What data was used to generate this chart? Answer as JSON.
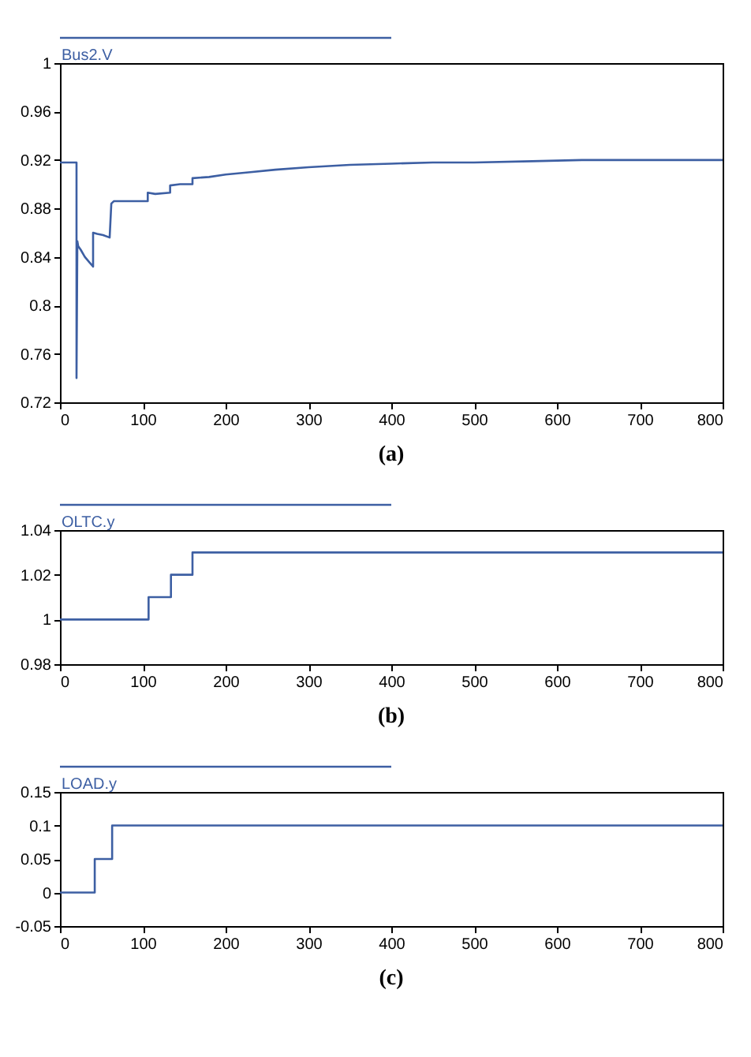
{
  "chart_data": [
    {
      "type": "line",
      "title": "(a)",
      "legend": "top left",
      "xlim": [
        0,
        800
      ],
      "xticks": [
        0,
        100,
        200,
        300,
        400,
        500,
        600,
        700,
        800
      ],
      "ylim": [
        0.72,
        1
      ],
      "yticks": [
        0.72,
        0.76,
        0.8,
        0.84,
        0.88,
        0.92,
        0.96,
        1
      ],
      "series": [
        {
          "name": "Bus2.V",
          "color": "#3d5fa3",
          "x": [
            0,
            20,
            20,
            21,
            22,
            25,
            30,
            35,
            40,
            40,
            45,
            52,
            60,
            62,
            65,
            106,
            106,
            115,
            133,
            133,
            145,
            160,
            160,
            180,
            200,
            230,
            260,
            300,
            350,
            400,
            450,
            500,
            570,
            630,
            700,
            800
          ],
          "values": [
            0.918,
            0.918,
            0.74,
            0.853,
            0.849,
            0.846,
            0.84,
            0.836,
            0.832,
            0.86,
            0.859,
            0.858,
            0.856,
            0.884,
            0.886,
            0.886,
            0.893,
            0.892,
            0.893,
            0.899,
            0.9,
            0.9,
            0.905,
            0.906,
            0.908,
            0.91,
            0.912,
            0.914,
            0.916,
            0.917,
            0.918,
            0.918,
            0.919,
            0.92,
            0.92,
            0.92
          ]
        }
      ]
    },
    {
      "type": "line",
      "title": "(b)",
      "legend": "top left",
      "xlim": [
        0,
        800
      ],
      "xticks": [
        0,
        100,
        200,
        300,
        400,
        500,
        600,
        700,
        800
      ],
      "ylim": [
        0.98,
        1.04
      ],
      "yticks": [
        0.98,
        1,
        1.02,
        1.04
      ],
      "series": [
        {
          "name": "OLTC.y",
          "color": "#3d5fa3",
          "x": [
            0,
            107,
            107,
            134,
            134,
            160,
            160,
            800
          ],
          "values": [
            1,
            1,
            1.01,
            1.01,
            1.02,
            1.02,
            1.03,
            1.03
          ]
        }
      ]
    },
    {
      "type": "line",
      "title": "(c)",
      "legend": "top left",
      "xlim": [
        0,
        800
      ],
      "xticks": [
        0,
        100,
        200,
        300,
        400,
        500,
        600,
        700,
        800
      ],
      "ylim": [
        -0.05,
        0.15
      ],
      "yticks": [
        -0.05,
        0,
        0.05,
        0.1,
        0.15
      ],
      "series": [
        {
          "name": "LOAD.y",
          "color": "#3d5fa3",
          "x": [
            0,
            42,
            42,
            63,
            63,
            800
          ],
          "values": [
            0,
            0,
            0.05,
            0.05,
            0.1,
            0.1
          ]
        }
      ]
    }
  ]
}
